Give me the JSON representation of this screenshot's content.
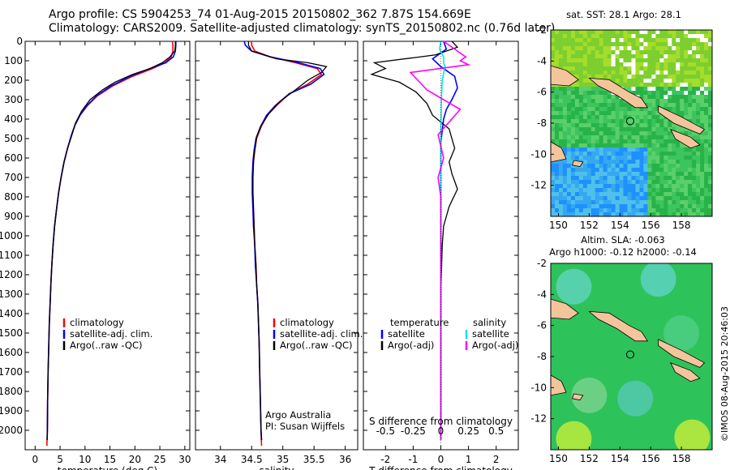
{
  "header": {
    "line1": "Argo profile: CS 5904253_74 01-Aug-2015 20150802_362 7.87S 154.669E",
    "line2": "Climatology: CARS2009. Satellite-adjusted climatology: synTS_20150802.nc (0.76d later)"
  },
  "colors": {
    "climatology": "#ff0000",
    "satellite": "#0000ff",
    "argo": "#000000",
    "sat_salinity": "#00e5ee",
    "argo_salinity_adj": "#ff00ff",
    "land": "#f4c49c"
  },
  "chart_data": [
    {
      "type": "line",
      "name_key": "temperature_panel",
      "xlabel": "temperature (deg C)",
      "xlim": [
        -2,
        31
      ],
      "xticks": [
        0,
        5,
        10,
        15,
        20,
        25,
        30
      ],
      "ylim": [
        2100,
        0
      ],
      "yticks": [
        0,
        100,
        200,
        300,
        400,
        500,
        600,
        700,
        800,
        900,
        1000,
        1100,
        1200,
        1300,
        1400,
        1500,
        1600,
        1700,
        1800,
        1900,
        2000
      ],
      "grid": false,
      "legend": [
        "climatology",
        "satellite-adj. clim.",
        "Argo(..raw -QC)"
      ],
      "legend_position": "lower-center",
      "series": [
        {
          "name": "climatology",
          "color": "#ff0000",
          "x": [
            27.5,
            27.6,
            27.6,
            27.3,
            26.0,
            23.5,
            19.5,
            15.5,
            12.5,
            10.5,
            9.0,
            8.0,
            7.3,
            6.5,
            5.8,
            5.2,
            4.7,
            4.3,
            3.9,
            3.6,
            3.35,
            3.15,
            3.0,
            2.85,
            2.75,
            2.6,
            2.5,
            2.45,
            2.35
          ],
          "y": [
            0,
            20,
            50,
            80,
            110,
            140,
            180,
            230,
            280,
            330,
            380,
            430,
            480,
            550,
            620,
            700,
            780,
            860,
            950,
            1050,
            1150,
            1250,
            1350,
            1450,
            1550,
            1700,
            1850,
            2000,
            2080
          ]
        },
        {
          "name": "satellite-adj. clim.",
          "color": "#0000ff",
          "x": [
            28.2,
            28.2,
            28.1,
            27.7,
            26.2,
            23.0,
            19.0,
            15.2,
            12.3,
            10.4,
            9.0,
            8.0,
            7.3,
            6.5,
            5.8,
            5.2,
            4.7,
            4.3,
            3.9,
            3.6,
            3.35,
            3.15,
            3.0,
            2.85,
            2.75,
            2.6,
            2.5,
            2.45,
            2.4
          ],
          "y": [
            0,
            20,
            50,
            80,
            110,
            140,
            180,
            230,
            280,
            330,
            380,
            430,
            480,
            550,
            620,
            700,
            780,
            860,
            950,
            1050,
            1150,
            1250,
            1350,
            1450,
            1550,
            1700,
            1850,
            2000,
            2050
          ]
        },
        {
          "name": "Argo(..raw -QC)",
          "color": "#000000",
          "x": [
            28.1,
            28.1,
            28.0,
            27.0,
            25.5,
            23.0,
            19.5,
            16.0,
            13.5,
            11.0,
            9.3,
            8.1,
            7.4,
            6.5,
            5.8,
            5.2,
            4.7,
            4.3,
            3.9,
            3.6,
            3.35,
            3.15,
            3.0,
            2.85,
            2.75,
            2.6,
            2.5,
            2.45,
            2.4
          ],
          "y": [
            0,
            20,
            50,
            80,
            110,
            140,
            170,
            210,
            250,
            300,
            360,
            420,
            480,
            550,
            620,
            700,
            780,
            860,
            950,
            1050,
            1150,
            1250,
            1350,
            1450,
            1550,
            1700,
            1850,
            2000,
            2050
          ]
        }
      ]
    },
    {
      "type": "line",
      "name_key": "salinity_panel",
      "xlabel": "salinity",
      "xlim": [
        33.6,
        36.2
      ],
      "xticks": [
        34,
        34.5,
        35,
        35.5,
        36
      ],
      "ylim": [
        2100,
        0
      ],
      "grid": false,
      "legend": [
        "climatology",
        "satellite-adj. clim.",
        "Argo(..raw -QC)"
      ],
      "legend_position": "lower-right",
      "annotations": [
        "Argo Australia",
        "PI: Susan Wijffels"
      ],
      "series": [
        {
          "name": "climatology",
          "color": "#ff0000",
          "x": [
            34.5,
            34.5,
            34.55,
            34.8,
            35.2,
            35.55,
            35.62,
            35.4,
            35.1,
            34.9,
            34.75,
            34.65,
            34.58,
            34.55,
            34.53,
            34.52,
            34.52,
            34.53,
            34.54,
            34.55,
            34.57,
            34.58,
            34.6,
            34.61,
            34.62,
            34.63,
            34.64,
            34.65,
            34.66
          ],
          "y": [
            0,
            20,
            50,
            80,
            110,
            140,
            170,
            220,
            270,
            330,
            380,
            440,
            500,
            560,
            620,
            700,
            780,
            860,
            950,
            1050,
            1150,
            1250,
            1350,
            1450,
            1550,
            1700,
            1850,
            2000,
            2080
          ]
        },
        {
          "name": "satellite-adj. clim.",
          "color": "#0000ff",
          "x": [
            34.38,
            34.4,
            34.5,
            34.8,
            35.25,
            35.6,
            35.66,
            35.45,
            35.1,
            34.88,
            34.74,
            34.64,
            34.57,
            34.54,
            34.52,
            34.51,
            34.51,
            34.52,
            34.53,
            34.55,
            34.56,
            34.58,
            34.6,
            34.61,
            34.62,
            34.63,
            34.64,
            34.65,
            34.66
          ],
          "y": [
            0,
            20,
            50,
            80,
            110,
            140,
            170,
            220,
            270,
            330,
            380,
            440,
            500,
            560,
            620,
            700,
            780,
            860,
            950,
            1050,
            1150,
            1250,
            1350,
            1450,
            1550,
            1700,
            1850,
            2000,
            2050
          ]
        },
        {
          "name": "Argo(..raw -QC)",
          "color": "#000000",
          "x": [
            34.45,
            34.45,
            34.5,
            34.9,
            35.4,
            35.7,
            35.62,
            35.4,
            35.2,
            34.95,
            34.78,
            34.66,
            34.58,
            34.55,
            34.53,
            34.52,
            34.52,
            34.53,
            34.54,
            34.55,
            34.57,
            34.58,
            34.6,
            34.61,
            34.62,
            34.63,
            34.64,
            34.65,
            34.66
          ],
          "y": [
            0,
            20,
            50,
            90,
            110,
            130,
            160,
            200,
            250,
            310,
            370,
            430,
            490,
            560,
            620,
            700,
            780,
            860,
            950,
            1050,
            1150,
            1250,
            1350,
            1450,
            1550,
            1700,
            1850,
            2000,
            2050
          ]
        }
      ]
    },
    {
      "type": "line",
      "name_key": "difference_panel",
      "xlabel": "T difference from climatology",
      "xlabel_top": "S difference from climatology",
      "xlim": [
        -2.8,
        2.8
      ],
      "xticks": [
        -2,
        -1,
        0,
        1,
        2
      ],
      "xticks_top": [
        "-0.5",
        "-0.25",
        "0",
        "0.25",
        "0.5"
      ],
      "ylim": [
        2100,
        0
      ],
      "grid": false,
      "legend_left_title": "temperature",
      "legend_right_title": "salinity",
      "legend": [
        "satellite",
        "Argo(-adj)",
        "satellite",
        "Argo(-adj)"
      ],
      "series": [
        {
          "name": "temperature satellite",
          "color": "#0000ff",
          "x": [
            0.1,
            0.2,
            0.0,
            -0.3,
            0.0,
            0.5,
            0.6,
            0.4,
            0.2,
            0.1,
            0.05,
            0.0,
            0.0,
            0.0,
            0.0,
            0.0,
            0.0,
            0.0,
            0.0,
            0.0,
            0.0
          ],
          "y": [
            0,
            40,
            60,
            90,
            130,
            180,
            240,
            300,
            350,
            400,
            460,
            520,
            600,
            700,
            800,
            1000,
            1200,
            1400,
            1600,
            1800,
            2050
          ]
        },
        {
          "name": "temperature Argo(-adj)",
          "color": "#000000",
          "x": [
            0.4,
            0.6,
            -0.2,
            -2.4,
            -2.0,
            -2.5,
            -1.5,
            -0.9,
            -0.5,
            -0.3,
            0.3,
            0.4,
            0.5,
            0.3,
            0.4,
            0.6,
            0.3,
            0.2,
            0.1,
            0.05,
            0.0,
            0.0,
            0.0,
            0.0
          ],
          "y": [
            0,
            30,
            70,
            110,
            140,
            170,
            210,
            260,
            320,
            380,
            450,
            500,
            550,
            620,
            680,
            760,
            850,
            900,
            950,
            1050,
            1300,
            1600,
            1900,
            2050
          ]
        },
        {
          "name": "salinity satellite",
          "color": "#00e5ee",
          "x": [
            0.0,
            -0.05,
            0.1,
            0.1,
            0.15,
            0.05,
            0.02,
            0.0,
            0.0,
            0.0,
            0.0,
            0.0
          ],
          "y": [
            0,
            40,
            80,
            110,
            130,
            200,
            300,
            450,
            600,
            900,
            1400,
            2050
          ]
        },
        {
          "name": "salinity Argo(-adj)",
          "color": "#ff00ff",
          "x": [
            0.1,
            0.5,
            0.9,
            0.7,
            1.0,
            -1.1,
            -0.5,
            0.7,
            -0.1,
            0.1,
            -0.1,
            0.0,
            0.0,
            0.0
          ],
          "y": [
            0,
            40,
            80,
            100,
            120,
            160,
            250,
            350,
            480,
            600,
            700,
            800,
            1000,
            2050
          ]
        }
      ]
    },
    {
      "type": "heatmap",
      "name_key": "sst_map",
      "title": "sat. SST: 28.1  Argo: 28.1",
      "xlim": [
        149.5,
        160
      ],
      "ylim": [
        -14,
        -2
      ],
      "xticks": [
        150,
        152,
        154,
        156,
        158
      ],
      "yticks": [
        -2,
        -4,
        -6,
        -8,
        -10,
        -12
      ]
    },
    {
      "type": "heatmap",
      "name_key": "sla_map",
      "title": "Altim. SLA: -0.063",
      "subtitle": "Argo h1000: -0.12 h2000: -0.14",
      "xlim": [
        149.5,
        160
      ],
      "ylim": [
        -14,
        -2
      ],
      "xticks": [
        150,
        152,
        154,
        156,
        158
      ],
      "yticks": [
        -2,
        -4,
        -6,
        -8,
        -10,
        -12
      ]
    }
  ],
  "footer": {
    "credit": "©IMOS 08-Aug-2015 20:46:03"
  }
}
